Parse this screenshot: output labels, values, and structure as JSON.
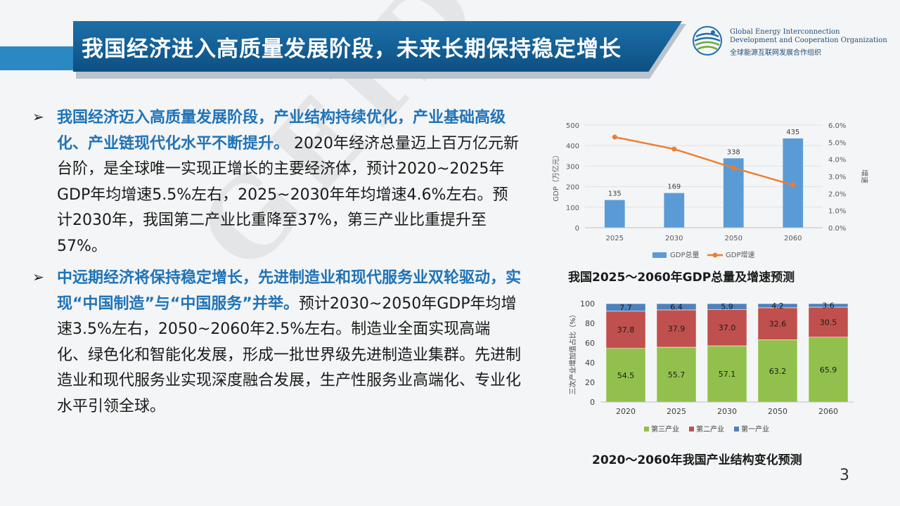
{
  "slide": {
    "title": "我国经济进入高质量发展阶段，未来长期保持稳定增长",
    "page_number": "3",
    "watermark": "GEIDCO"
  },
  "logo": {
    "name_en_line1": "Global Energy Interconnection",
    "name_en_line2": "Development and Cooperation Organization",
    "name_cn": "全球能源互联网发展合作组织"
  },
  "bullets": [
    {
      "highlight": "我国经济迈入高质量发展阶段，产业结构持续优化，产业基础高级化、产业链现代化水平不断提升。",
      "body": " 2020年经济总量迈上百万亿元新台阶，是全球唯一实现正增长的主要经济体，预计2020~2025年GDP年均增速5.5%左右，2025~2030年年均增速4.6%左右。预计2030年，我国第二产业比重降至37%，第三产业比重提升至57%。"
    },
    {
      "highlight": "中远期经济将保持稳定增长，先进制造业和现代服务业双轮驱动，实现“中国制造”与“中国服务”并举。",
      "body": "预计2030~2050年GDP年均增速3.5%左右，2050~2060年2.5%左右。制造业全面实现高端化、绿色化和智能化发展，形成一批世界级先进制造业集群。先进制造业和现代服务业实现深度融合发展，生产性服务业高端化、专业化水平引领全球。"
    }
  ],
  "chart_data": [
    {
      "type": "bar",
      "title": "我国2025～2060年GDP总量及增速预测",
      "categories": [
        "2025",
        "2030",
        "2050",
        "2060"
      ],
      "ylabel": "GDP（万亿元）",
      "y2label": "增速",
      "ylim": [
        0,
        500
      ],
      "yticks": [
        0,
        100,
        200,
        300,
        400,
        500
      ],
      "y2lim": [
        0,
        6
      ],
      "y2ticks": [
        "0.0%",
        "1.0%",
        "2.0%",
        "3.0%",
        "4.0%",
        "5.0%",
        "6.0%"
      ],
      "series": [
        {
          "name": "GDP总量",
          "kind": "bar",
          "axis": "left",
          "color": "#5b9bd5",
          "values": [
            135,
            169,
            338,
            435
          ],
          "labels": [
            "135",
            "169",
            "338",
            "435"
          ]
        },
        {
          "name": "GDP增速",
          "kind": "line",
          "axis": "right",
          "color": "#ed7d31",
          "values": [
            5.3,
            4.6,
            3.5,
            2.5
          ]
        }
      ],
      "legend": "bottom"
    },
    {
      "type": "bar",
      "stacked": true,
      "title": "2020～2060年我国产业结构变化预测",
      "categories": [
        "2020",
        "2025",
        "2030",
        "2050",
        "2060"
      ],
      "ylabel": "三次产业增加值占比（%）",
      "ylim": [
        0,
        100
      ],
      "yticks": [
        0,
        20,
        40,
        60,
        80,
        100
      ],
      "series": [
        {
          "name": "第三产业",
          "color": "#92c04c",
          "values": [
            54.5,
            55.7,
            57.1,
            63.2,
            65.9
          ],
          "labels": [
            "54.5",
            "55.7",
            "57.1",
            "63.2",
            "65.9"
          ]
        },
        {
          "name": "第二产业",
          "color": "#c0504d",
          "values": [
            37.8,
            37.9,
            37.0,
            32.6,
            30.5
          ],
          "labels": [
            "37.8",
            "37.9",
            "37.0",
            "32.6",
            "30.5"
          ]
        },
        {
          "name": "第一产业",
          "color": "#4f81bd",
          "values": [
            7.7,
            6.4,
            5.9,
            4.2,
            3.6
          ],
          "labels": [
            "7.7",
            "6.4",
            "5.9",
            "4.2",
            "3.6"
          ]
        }
      ],
      "legend": "bottom"
    }
  ]
}
